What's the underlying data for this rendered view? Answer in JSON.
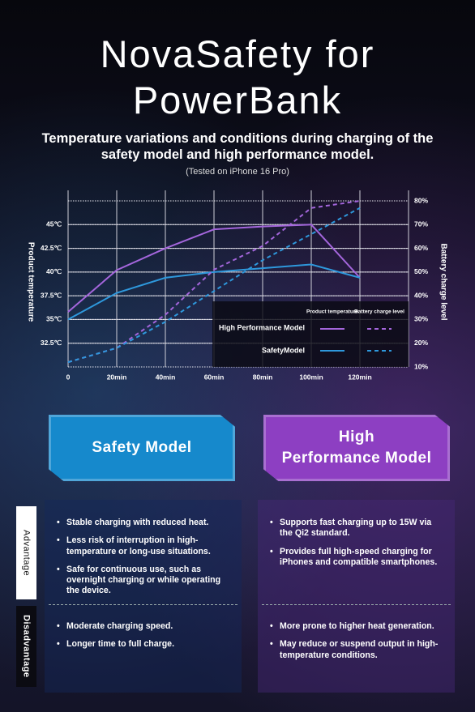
{
  "header": {
    "title": "NovaSafety for PowerBank",
    "subtitle": "Temperature variations and conditions during charging of the safety model and high performance model.",
    "note": "(Tested on iPhone 16 Pro)"
  },
  "chart_data": {
    "type": "line",
    "y_label": "Product temperature",
    "y2_label": "Battery charge level",
    "x": [
      0,
      20,
      40,
      60,
      80,
      100,
      120
    ],
    "xlim": [
      0,
      140
    ],
    "xticks": [
      0,
      {
        "value": 20,
        "label": "20min"
      },
      {
        "value": 40,
        "label": "40min"
      },
      {
        "value": 60,
        "label": "60min"
      },
      {
        "value": 80,
        "label": "80min"
      },
      {
        "value": 100,
        "label": "100min"
      },
      {
        "value": 120,
        "label": "120min"
      }
    ],
    "ylim": [
      30,
      47.5
    ],
    "yticks": [
      {
        "value": 32.5,
        "label": "32.5℃"
      },
      {
        "value": 35,
        "label": "35℃"
      },
      {
        "value": 37.5,
        "label": "37.5℃"
      },
      {
        "value": 40,
        "label": "40℃"
      },
      {
        "value": 42.5,
        "label": "42.5℃"
      },
      {
        "value": 45,
        "label": "45℃"
      }
    ],
    "y2lim": [
      10,
      80
    ],
    "y2ticks": [
      {
        "value": 10,
        "label": "10%"
      },
      {
        "value": 20,
        "label": "20%"
      },
      {
        "value": 30,
        "label": "30%"
      },
      {
        "value": 40,
        "label": "40%"
      },
      {
        "value": 50,
        "label": "50%"
      },
      {
        "value": 60,
        "label": "60%"
      },
      {
        "value": 70,
        "label": "70%"
      },
      {
        "value": 80,
        "label": "80%"
      }
    ],
    "grid": true,
    "legend": {
      "position": "lower right",
      "columns": [
        "Product temperature",
        "Battery charge level"
      ],
      "rows": [
        "High Performance Model",
        "SafetyModel"
      ]
    },
    "series": [
      {
        "color": "#a466dc",
        "style": "solid",
        "values": [
          35.8,
          40.2,
          42.5,
          44.5,
          44.8,
          45,
          39.4
        ]
      },
      {
        "color": "#2e98dc",
        "style": "solid",
        "values": [
          35,
          37.8,
          39.4,
          40,
          40.4,
          40.8,
          39.4
        ]
      },
      {
        "color": "#a466dc",
        "style": "dashed",
        "axis": "y2",
        "values": [
          12,
          18,
          32,
          51,
          61,
          77,
          80
        ]
      },
      {
        "color": "#2e98dc",
        "style": "dashed",
        "axis": "y2",
        "values": [
          12,
          18,
          29,
          42,
          55,
          66,
          77
        ]
      }
    ]
  },
  "comparison": {
    "labels": [
      "Advantage",
      "Disadvantage"
    ],
    "models": [
      {
        "lines": [
          "Safety Model"
        ],
        "color": "#1689cc",
        "advantages": [
          "Stable charging with reduced heat.",
          "Less risk of interruption in high-temperature or long-use situations.",
          "Safe for continuous use, such as overnight charging or while operating the device."
        ],
        "disadvantages": [
          "Moderate charging speed.",
          "Longer time to full charge."
        ]
      },
      {
        "lines": [
          "High",
          "Performance Model"
        ],
        "color": "#8d3fc2",
        "advantages": [
          "Supports fast charging up to 15W via the Qi2 standard.",
          "Provides full high-speed charging for iPhones and compatible smartphones."
        ],
        "disadvantages": [
          "More prone to higher heat generation.",
          "May reduce or suspend output in high-temperature conditions."
        ]
      }
    ]
  }
}
